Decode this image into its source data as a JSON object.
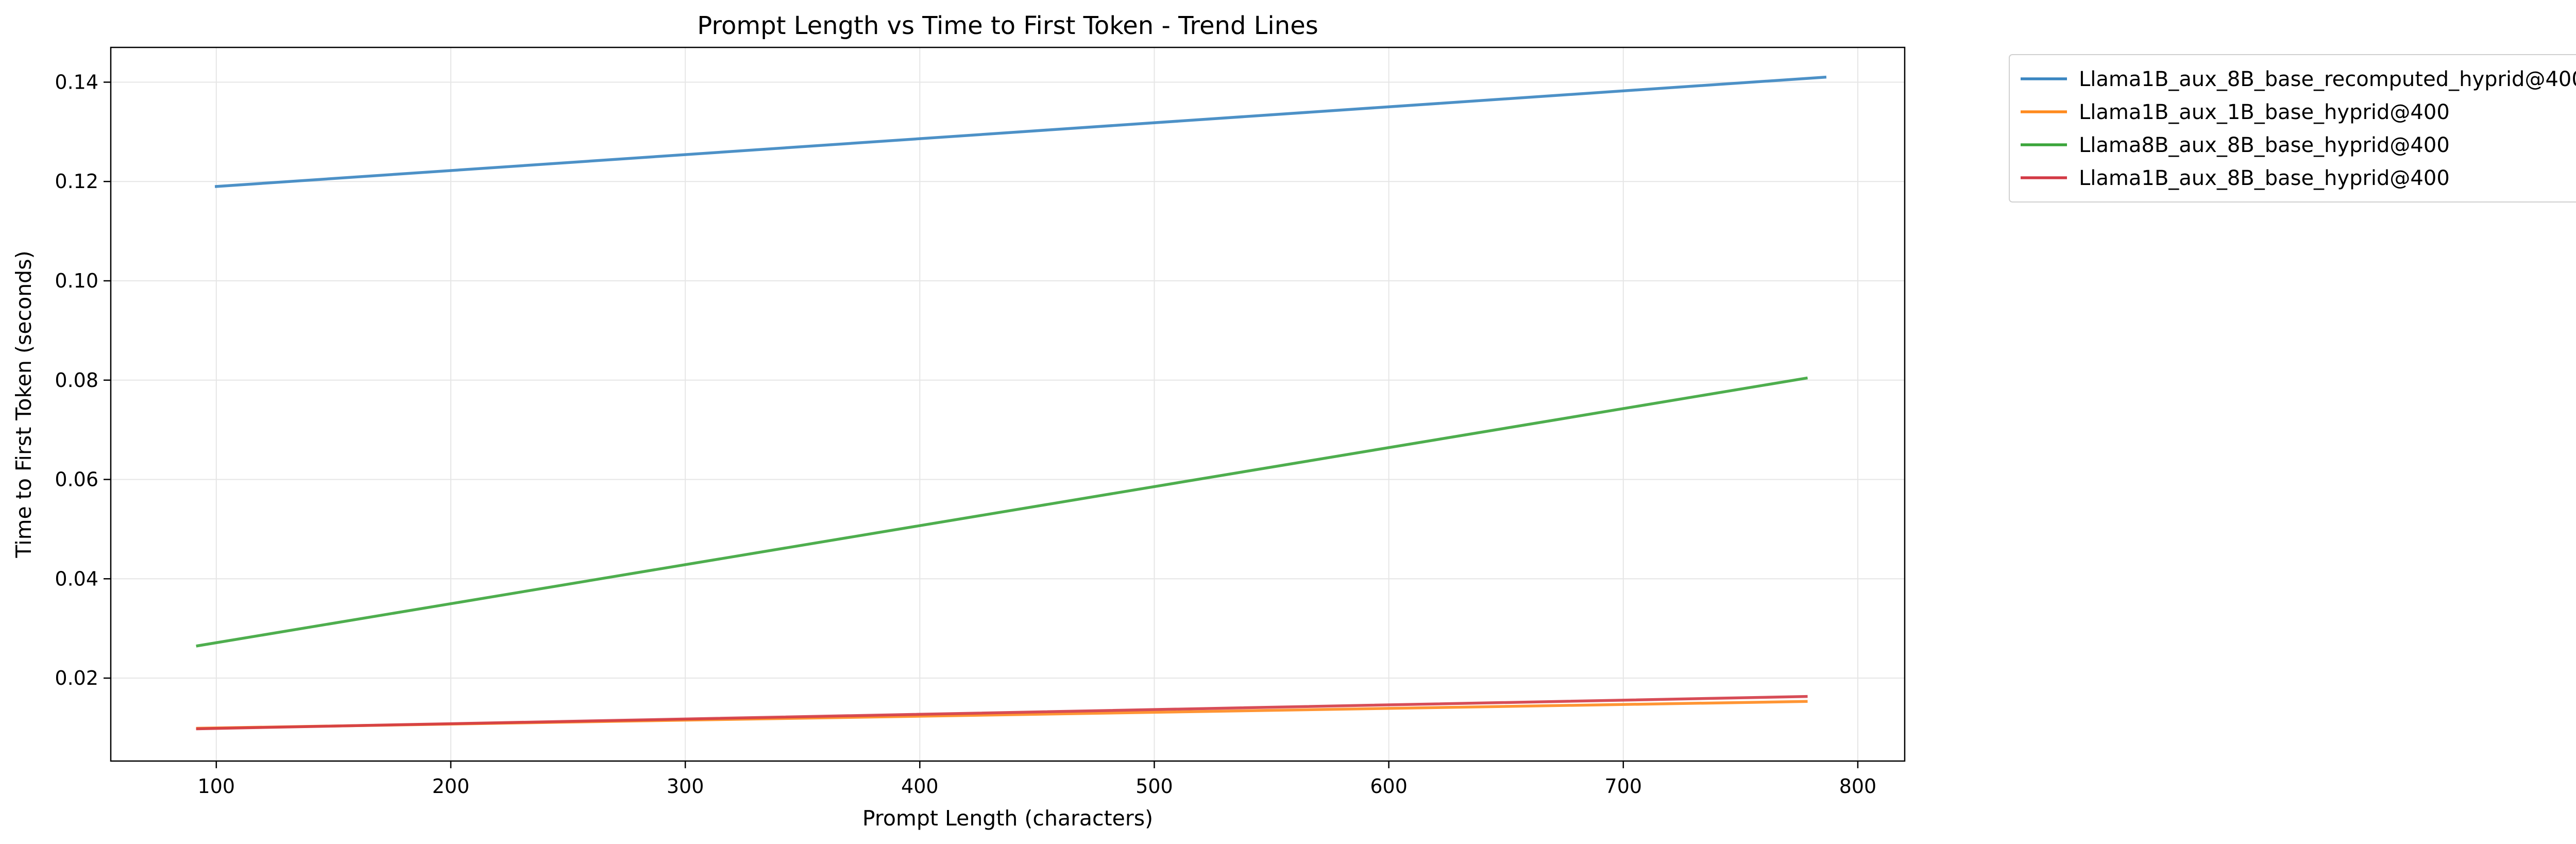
{
  "chart_data": {
    "type": "line",
    "title": "Prompt Length vs Time to First Token - Trend Lines",
    "xlabel": "Prompt Length (characters)",
    "ylabel": "Time to First Token (seconds)",
    "xlim": [
      55,
      820
    ],
    "ylim": [
      0.0033,
      0.147
    ],
    "xticks": [
      100,
      200,
      300,
      400,
      500,
      600,
      700,
      800
    ],
    "yticks": [
      0.02,
      0.04,
      0.06,
      0.08,
      0.1,
      0.12,
      0.14
    ],
    "ytick_labels": [
      "0.02",
      "0.04",
      "0.06",
      "0.08",
      "0.10",
      "0.12",
      "0.14"
    ],
    "grid": true,
    "legend_position": "outside-top-right",
    "series": [
      {
        "name": "Llama1B_aux_8B_base_recomputed_hyprid@400",
        "color": "#3a85c1",
        "x": [
          100,
          786
        ],
        "y": [
          0.119,
          0.141
        ]
      },
      {
        "name": "Llama1B_aux_1B_base_hyprid@400",
        "color": "#ff8a1e",
        "x": [
          92,
          778
        ],
        "y": [
          0.0099,
          0.0153
        ]
      },
      {
        "name": "Llama8B_aux_8B_base_hyprid@400",
        "color": "#3ba53b",
        "x": [
          92,
          778
        ],
        "y": [
          0.0265,
          0.0804
        ]
      },
      {
        "name": "Llama1B_aux_8B_base_hyprid@400",
        "color": "#d33a45",
        "x": [
          92,
          778
        ],
        "y": [
          0.0098,
          0.0163
        ]
      }
    ]
  }
}
